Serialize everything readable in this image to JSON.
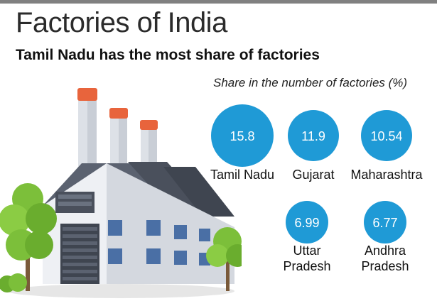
{
  "header": {
    "title": "Factories of India",
    "subtitle": "Tamil Nadu has the most share of factories",
    "caption": "Share in the number of factories (%)"
  },
  "colors": {
    "bubble": "#1f9ad6",
    "top_bar": "#808080"
  },
  "chart_data": {
    "type": "bubble",
    "title": "Factories of India",
    "subtitle": "Tamil Nadu has the most share of factories",
    "measure": "Share in the number of factories (%)",
    "categories": [
      "Tamil Nadu",
      "Gujarat",
      "Maharashtra",
      "Uttar Pradesh",
      "Andhra Pradesh"
    ],
    "values": [
      15.8,
      11.9,
      10.54,
      6.99,
      6.77
    ],
    "labels": [
      {
        "lines": [
          "Tamil Nadu"
        ],
        "value_text": "15.8"
      },
      {
        "lines": [
          "Gujarat"
        ],
        "value_text": "11.9"
      },
      {
        "lines": [
          "Maharashtra"
        ],
        "value_text": "10.54"
      },
      {
        "lines": [
          "Uttar",
          "Pradesh"
        ],
        "value_text": "6.99"
      },
      {
        "lines": [
          "Andhra",
          "Pradesh"
        ],
        "value_text": "6.77"
      }
    ]
  }
}
